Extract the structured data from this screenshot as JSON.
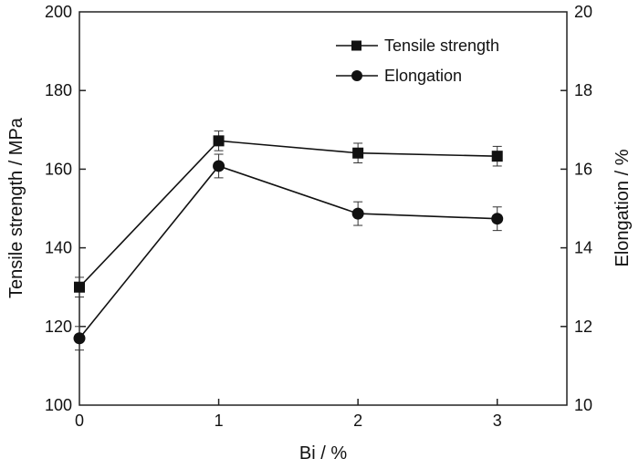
{
  "chart_data": {
    "type": "line",
    "title": "",
    "xlabel": "Bi / %",
    "ylabel": "Tensile strength / MPa",
    "y2label": "Elongation / %",
    "x": [
      0,
      1,
      2,
      3
    ],
    "xlim": [
      0,
      3.5
    ],
    "ylim": [
      100,
      200
    ],
    "y2lim": [
      10,
      20
    ],
    "xticks": [
      "0",
      "1",
      "2",
      "3"
    ],
    "yticks": [
      "100",
      "120",
      "140",
      "160",
      "180",
      "200"
    ],
    "y2ticks": [
      "10",
      "12",
      "14",
      "16",
      "18",
      "20"
    ],
    "grid": false,
    "legend_position": "top-right",
    "series": [
      {
        "name": "Tensile strength",
        "axis": "left",
        "marker": "square",
        "values": [
          130,
          167.2,
          164.1,
          163.3
        ],
        "errors": [
          2.5,
          2.5,
          2.5,
          2.5
        ]
      },
      {
        "name": "Elongation",
        "axis": "right",
        "marker": "circle",
        "values": [
          11.7,
          16.08,
          14.87,
          14.74
        ],
        "errors": [
          0.3,
          0.3,
          0.3,
          0.3
        ]
      }
    ]
  }
}
